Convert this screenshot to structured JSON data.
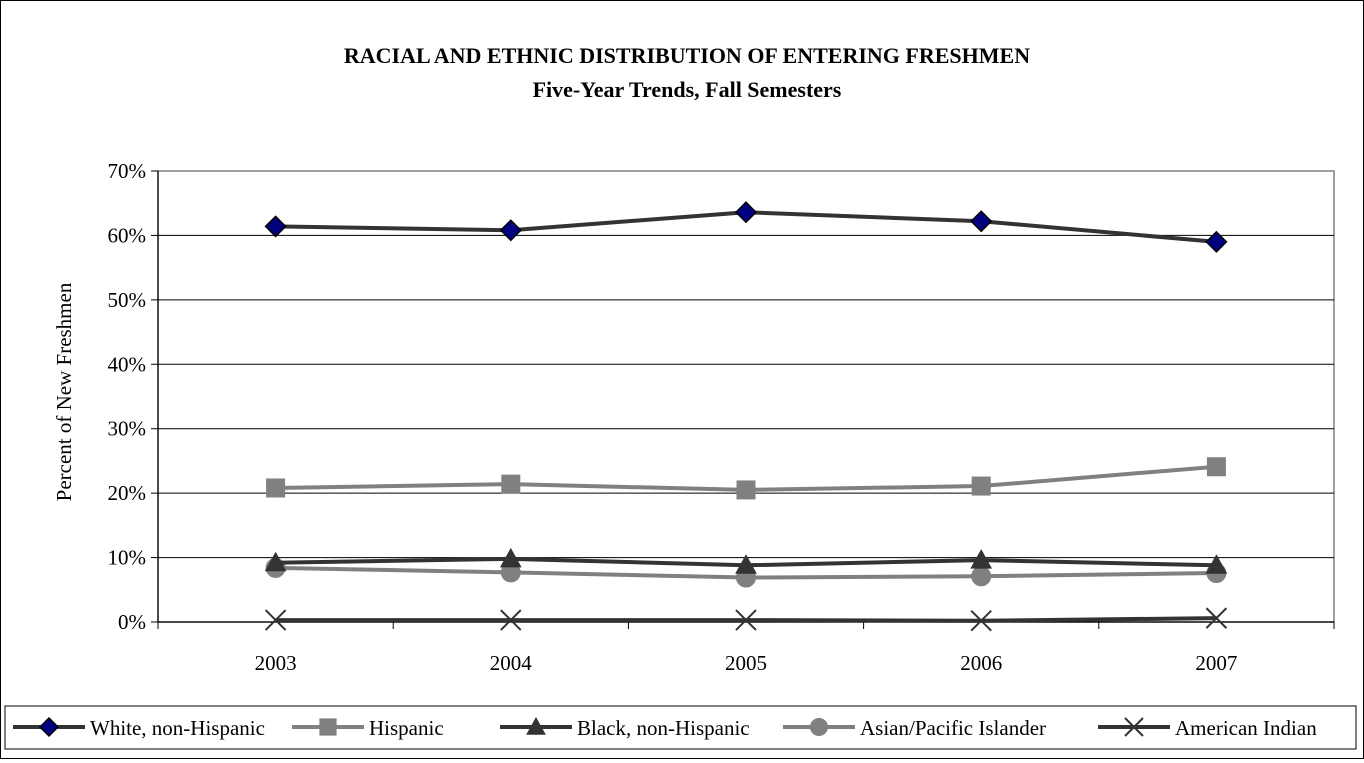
{
  "chart_data": {
    "type": "line",
    "title": "RACIAL AND ETHNIC DISTRIBUTION OF ENTERING FRESHMEN",
    "subtitle": "Five-Year Trends, Fall Semesters",
    "xlabel": "",
    "ylabel": "Percent of New Freshmen",
    "categories": [
      "2003",
      "2004",
      "2005",
      "2006",
      "2007"
    ],
    "y_ticks": [
      "0%",
      "10%",
      "20%",
      "30%",
      "40%",
      "50%",
      "60%",
      "70%"
    ],
    "ylim": [
      0,
      70
    ],
    "grid": true,
    "legend_position": "bottom",
    "series": [
      {
        "name": "White, non-Hispanic",
        "values": [
          61.4,
          60.8,
          63.6,
          62.2,
          59.0
        ],
        "color": "#333333",
        "marker": "diamond",
        "marker_color": "#000080"
      },
      {
        "name": "Hispanic",
        "values": [
          20.8,
          21.4,
          20.5,
          21.1,
          24.1
        ],
        "color": "#808080",
        "marker": "square",
        "marker_color": "#808080"
      },
      {
        "name": "Black, non-Hispanic",
        "values": [
          9.2,
          9.8,
          8.8,
          9.6,
          8.8
        ],
        "color": "#333333",
        "marker": "triangle",
        "marker_color": "#333333"
      },
      {
        "name": "Asian/Pacific Islander",
        "values": [
          8.4,
          7.7,
          6.9,
          7.1,
          7.6
        ],
        "color": "#808080",
        "marker": "circle",
        "marker_color": "#808080"
      },
      {
        "name": "American Indian",
        "values": [
          0.3,
          0.3,
          0.3,
          0.2,
          0.6
        ],
        "color": "#333333",
        "marker": "x",
        "marker_color": "#333333"
      }
    ]
  }
}
